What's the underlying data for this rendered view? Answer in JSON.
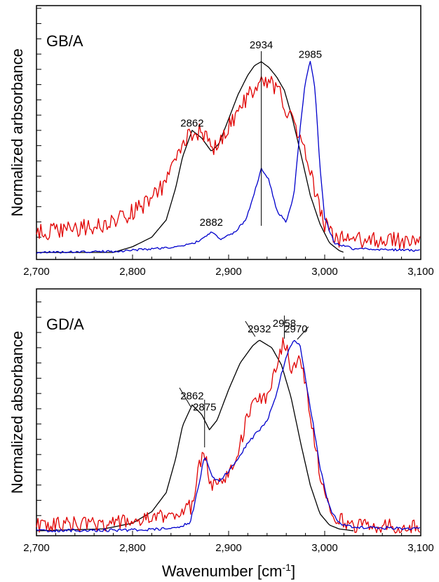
{
  "chart_data": [
    {
      "type": "line",
      "panel_label": "GB/A",
      "ylabel": "Normalized arbsorbance",
      "xlim": [
        2700,
        3100
      ],
      "ylim": [
        0,
        1
      ],
      "x_ticks": [
        "2,700",
        "2,800",
        "2,900",
        "3,000",
        "3,100"
      ],
      "x_tick_values": [
        2700,
        2800,
        2900,
        3000,
        3100
      ],
      "annotations": [
        {
          "text": "2862",
          "x": 2862,
          "y": 0.66
        },
        {
          "text": "2934",
          "x": 2934,
          "y": 1.07
        },
        {
          "text": "2985",
          "x": 2985,
          "y": 1.02
        },
        {
          "text": "2882",
          "x": 2882,
          "y": 0.14
        }
      ],
      "series": [
        {
          "color": "#000000",
          "noise": 0,
          "x": [
            2700,
            2780,
            2800,
            2820,
            2835,
            2845,
            2852,
            2862,
            2872,
            2882,
            2890,
            2900,
            2910,
            2920,
            2927,
            2934,
            2942,
            2950,
            2958,
            2966,
            2975,
            2985,
            2995,
            3005,
            3015,
            3020
          ],
          "y": [
            0,
            0,
            0.03,
            0.08,
            0.17,
            0.34,
            0.5,
            0.64,
            0.6,
            0.53,
            0.57,
            0.7,
            0.83,
            0.93,
            0.98,
            1.0,
            0.97,
            0.92,
            0.85,
            0.71,
            0.52,
            0.3,
            0.15,
            0.05,
            0.01,
            0
          ]
        },
        {
          "color": "#e00000",
          "noise": 0.045,
          "x": [
            2700,
            2770,
            2800,
            2820,
            2835,
            2845,
            2855,
            2865,
            2875,
            2882,
            2895,
            2910,
            2920,
            2930,
            2945,
            2955,
            2962,
            2975,
            2985,
            3000,
            3010,
            3100
          ],
          "y": [
            0.1,
            0.14,
            0.21,
            0.28,
            0.37,
            0.48,
            0.6,
            0.64,
            0.62,
            0.53,
            0.62,
            0.74,
            0.82,
            0.89,
            0.88,
            0.83,
            0.72,
            0.6,
            0.41,
            0.15,
            0.07,
            0.06
          ]
        },
        {
          "color": "#0000cc",
          "noise": 0.006,
          "x": [
            2700,
            2780,
            2850,
            2870,
            2882,
            2892,
            2905,
            2918,
            2926,
            2934,
            2942,
            2950,
            2960,
            2968,
            2975,
            2980,
            2985,
            2990,
            2995,
            3000,
            3010,
            3030,
            3100
          ],
          "y": [
            0,
            0.005,
            0.03,
            0.06,
            0.11,
            0.07,
            0.1,
            0.17,
            0.3,
            0.44,
            0.38,
            0.22,
            0.16,
            0.3,
            0.68,
            0.9,
            1.0,
            0.86,
            0.45,
            0.18,
            0.05,
            0.02,
            0.01
          ]
        }
      ]
    },
    {
      "type": "line",
      "panel_label": "GD/A",
      "ylabel": "Normalized absorbance",
      "xlabel": "Wavenumber [cm",
      "xlabel_sup": "-1",
      "xlabel_end": "]",
      "xlim": [
        2700,
        3100
      ],
      "ylim": [
        0,
        1
      ],
      "x_ticks": [
        "2,700",
        "2,800",
        "2,900",
        "3,000",
        "3,100"
      ],
      "x_tick_values": [
        2700,
        2800,
        2900,
        3000,
        3100
      ],
      "annotations": [
        {
          "text": "2862",
          "x": 2862,
          "y": 0.69
        },
        {
          "text": "2875",
          "x": 2875,
          "y": 0.63
        },
        {
          "text": "2932",
          "x": 2932,
          "y": 1.04
        },
        {
          "text": "2958",
          "x": 2958,
          "y": 1.07
        },
        {
          "text": "2970",
          "x": 2970,
          "y": 1.04
        }
      ],
      "series": [
        {
          "color": "#000000",
          "noise": 0,
          "x": [
            2700,
            2770,
            2800,
            2820,
            2835,
            2845,
            2852,
            2862,
            2872,
            2880,
            2888,
            2900,
            2912,
            2925,
            2932,
            2945,
            2955,
            2965,
            2975,
            2985,
            2995,
            3005,
            3015,
            3030
          ],
          "y": [
            0,
            0.01,
            0.04,
            0.1,
            0.2,
            0.38,
            0.55,
            0.66,
            0.61,
            0.53,
            0.58,
            0.74,
            0.88,
            0.97,
            1.0,
            0.96,
            0.87,
            0.7,
            0.46,
            0.24,
            0.09,
            0.03,
            0.01,
            0
          ]
        },
        {
          "color": "#e00000",
          "noise": 0.04,
          "x": [
            2700,
            2780,
            2820,
            2850,
            2862,
            2870,
            2875,
            2882,
            2890,
            2900,
            2910,
            2920,
            2930,
            2940,
            2948,
            2958,
            2965,
            2972,
            2980,
            2990,
            3000,
            3010,
            3030,
            3100
          ],
          "y": [
            0.03,
            0.04,
            0.06,
            0.1,
            0.13,
            0.35,
            0.42,
            0.22,
            0.28,
            0.3,
            0.4,
            0.62,
            0.68,
            0.7,
            0.84,
            1.0,
            0.86,
            0.9,
            0.78,
            0.45,
            0.18,
            0.07,
            0.03,
            0.02
          ]
        },
        {
          "color": "#0000cc",
          "noise": 0.008,
          "x": [
            2700,
            2800,
            2840,
            2860,
            2868,
            2875,
            2882,
            2890,
            2900,
            2910,
            2920,
            2930,
            2940,
            2950,
            2960,
            2968,
            2974,
            2985,
            2995,
            3005,
            3015,
            3030,
            3100
          ],
          "y": [
            0,
            0.005,
            0.01,
            0.04,
            0.22,
            0.39,
            0.29,
            0.26,
            0.31,
            0.38,
            0.46,
            0.52,
            0.57,
            0.72,
            0.92,
            1.0,
            0.98,
            0.65,
            0.34,
            0.12,
            0.04,
            0.02,
            0.01
          ]
        }
      ]
    }
  ]
}
